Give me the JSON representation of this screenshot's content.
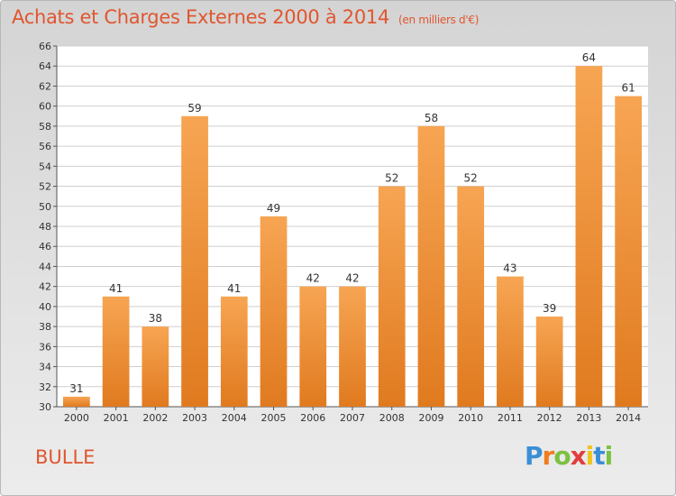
{
  "chart_data": {
    "type": "bar",
    "title": "Achats et Charges Externes 2000 à 2014",
    "subtitle": "(en milliers d'€)",
    "place": "BULLE",
    "categories": [
      "2000",
      "2001",
      "2002",
      "2003",
      "2004",
      "2005",
      "2006",
      "2007",
      "2008",
      "2009",
      "2010",
      "2011",
      "2012",
      "2013",
      "2014"
    ],
    "values": [
      31,
      41,
      38,
      59,
      41,
      49,
      42,
      42,
      52,
      58,
      52,
      43,
      39,
      64,
      61
    ],
    "ylim": [
      30,
      66
    ],
    "yticks": [
      30,
      32,
      34,
      36,
      38,
      40,
      42,
      44,
      46,
      48,
      50,
      52,
      54,
      56,
      58,
      60,
      62,
      64,
      66
    ],
    "grid": true,
    "bar_color": "#f0913a"
  },
  "logo": {
    "letters": [
      "P",
      "r",
      "o",
      "x",
      "i",
      "t",
      "i"
    ],
    "colors": [
      "#3a8fd6",
      "#f07c1e",
      "#7cc142",
      "#e23d3d",
      "#f0c419",
      "#3a8fd6",
      "#7cc142"
    ]
  }
}
